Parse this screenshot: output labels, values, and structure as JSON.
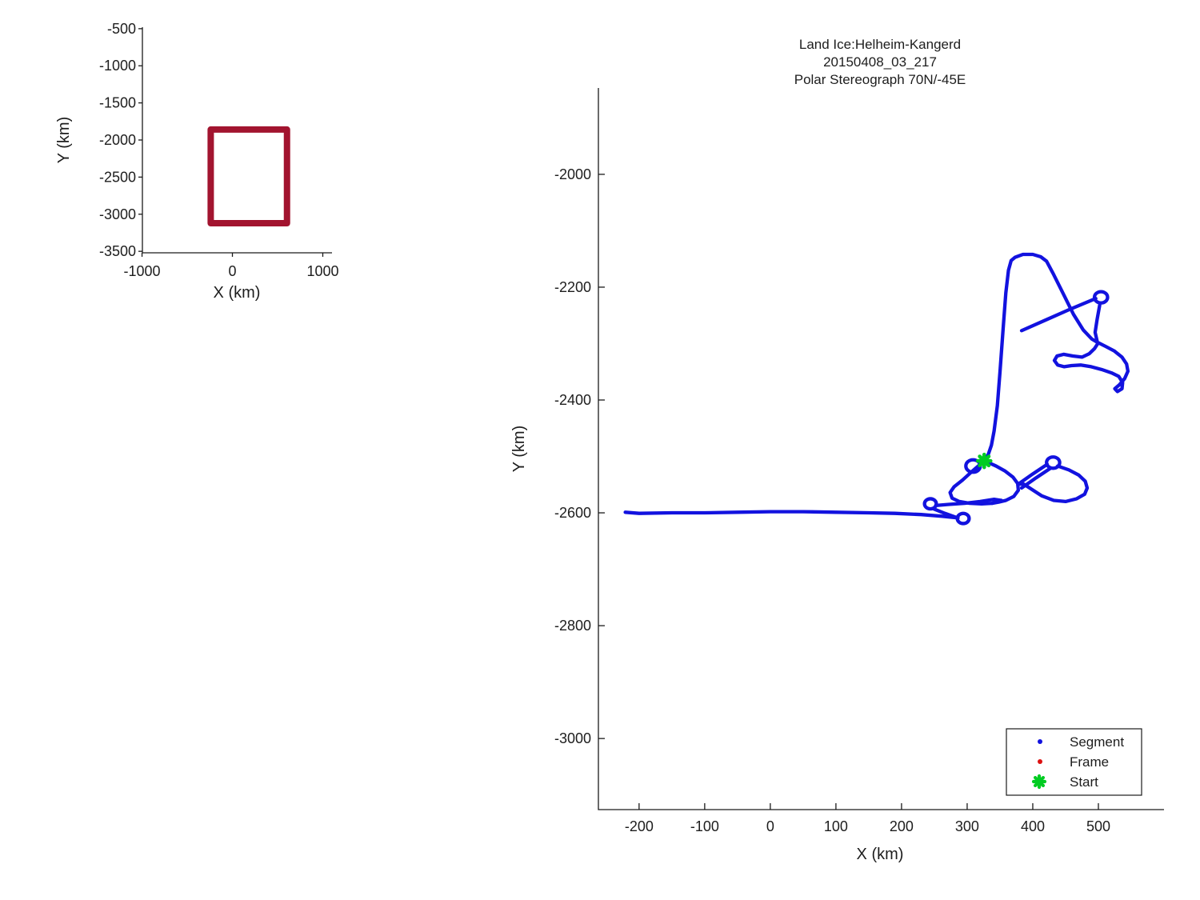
{
  "figure": {
    "background": "#ffffff",
    "axis_color": "#1a1a1a",
    "track_color": "#1212df",
    "frame_color": "#dd1111",
    "start_color": "#00cc22",
    "region_color": "#a2142f"
  },
  "chart_data": [
    {
      "id": "overview",
      "type": "line",
      "title": "",
      "xlabel": "X (km)",
      "ylabel": "Y (km)",
      "xlim": [
        -996,
        1102
      ],
      "ylim": [
        -3520,
        -480
      ],
      "xticks": [
        -1000,
        0,
        1000
      ],
      "yticks": [
        -500,
        -1000,
        -1500,
        -2000,
        -2500,
        -3000,
        -3500
      ],
      "grid": false,
      "box_region": {
        "x0": -240,
        "x1": 604,
        "y0": -3121,
        "y1": -1859,
        "color": "#a2142f",
        "meaning": "extent of detailed map"
      }
    },
    {
      "id": "main",
      "type": "line",
      "title": "Land Ice:Helheim-Kangerd",
      "subtitle": "20150408_03_217",
      "subtitle2": "Polar Stereograph 70N/-45E",
      "xlabel": "X (km)",
      "ylabel": "Y (km)",
      "xlim": [
        -262,
        600
      ],
      "ylim": [
        -3126,
        -1847
      ],
      "xticks": [
        -200,
        -100,
        0,
        100,
        200,
        300,
        400,
        500
      ],
      "yticks": [
        -2000,
        -2200,
        -2400,
        -2600,
        -2800,
        -3000
      ],
      "grid": false,
      "legend": [
        {
          "label": "Segment",
          "marker": "dot",
          "color": "#1212df"
        },
        {
          "label": "Frame",
          "marker": "dot",
          "color": "#dd1111"
        },
        {
          "label": "Start",
          "marker": "asterisk",
          "color": "#00cc22"
        }
      ],
      "legend_position": "lower right",
      "start": {
        "x": 326,
        "y": -2508
      },
      "tracks": [
        {
          "name": "west-leg",
          "points": [
            [
              -221,
              -2599
            ],
            [
              -200,
              -2601
            ],
            [
              -150,
              -2600
            ],
            [
              -100,
              -2600
            ],
            [
              -50,
              -2599
            ],
            [
              0,
              -2598
            ],
            [
              50,
              -2598
            ],
            [
              100,
              -2599
            ],
            [
              150,
              -2600
            ],
            [
              190,
              -2601
            ],
            [
              230,
              -2603
            ],
            [
              262,
              -2606
            ],
            [
              286,
              -2609
            ]
          ]
        },
        {
          "name": "hook-link-upper",
          "points": [
            [
              252,
              -2587
            ],
            [
              272,
              -2585
            ],
            [
              296,
              -2583
            ],
            [
              320,
              -2580
            ],
            [
              341,
              -2576
            ],
            [
              352,
              -2578
            ]
          ]
        },
        {
          "name": "hook-link-lower",
          "points": [
            [
              249,
              -2593
            ],
            [
              266,
              -2601
            ],
            [
              283,
              -2608
            ]
          ]
        },
        {
          "name": "left-lobe",
          "points": [
            [
              318,
              -2516
            ],
            [
              306,
              -2528
            ],
            [
              293,
              -2542
            ],
            [
              280,
              -2554
            ],
            [
              274,
              -2564
            ],
            [
              277,
              -2574
            ],
            [
              288,
              -2580
            ],
            [
              304,
              -2583
            ],
            [
              322,
              -2584
            ],
            [
              338,
              -2583
            ],
            [
              352,
              -2578
            ]
          ]
        },
        {
          "name": "center-lobe",
          "points": [
            [
              329,
              -2509
            ],
            [
              344,
              -2517
            ],
            [
              358,
              -2526
            ],
            [
              370,
              -2537
            ],
            [
              377,
              -2548
            ],
            [
              378,
              -2560
            ],
            [
              371,
              -2571
            ],
            [
              359,
              -2578
            ],
            [
              348,
              -2581
            ],
            [
              338,
              -2583
            ]
          ]
        },
        {
          "name": "ne-diagonal-1",
          "points": [
            [
              378,
              -2549
            ],
            [
              400,
              -2531
            ],
            [
              422,
              -2514
            ]
          ]
        },
        {
          "name": "ne-diagonal-2",
          "points": [
            [
              383,
              -2556
            ],
            [
              405,
              -2538
            ],
            [
              427,
              -2521
            ]
          ]
        },
        {
          "name": "right-lobe",
          "points": [
            [
              438,
              -2517
            ],
            [
              455,
              -2524
            ],
            [
              470,
              -2533
            ],
            [
              480,
              -2544
            ],
            [
              483,
              -2556
            ],
            [
              479,
              -2567
            ],
            [
              467,
              -2575
            ],
            [
              450,
              -2580
            ],
            [
              432,
              -2578
            ],
            [
              414,
              -2570
            ],
            [
              398,
              -2558
            ],
            [
              386,
              -2549
            ],
            [
              378,
              -2549
            ]
          ]
        },
        {
          "name": "north-leg",
          "points": [
            [
              326,
              -2508
            ],
            [
              332,
              -2497
            ],
            [
              337,
              -2480
            ],
            [
              341,
              -2455
            ],
            [
              346,
              -2410
            ],
            [
              350,
              -2350
            ],
            [
              355,
              -2270
            ],
            [
              359,
              -2210
            ],
            [
              363,
              -2170
            ],
            [
              367,
              -2153
            ],
            [
              373,
              -2147
            ],
            [
              385,
              -2142
            ],
            [
              400,
              -2142
            ],
            [
              412,
              -2146
            ],
            [
              421,
              -2154
            ],
            [
              432,
              -2178
            ],
            [
              447,
              -2213
            ],
            [
              462,
              -2248
            ],
            [
              477,
              -2276
            ],
            [
              490,
              -2292
            ],
            [
              499,
              -2298
            ]
          ]
        },
        {
          "name": "cross-diagonal",
          "points": [
            [
              383,
              -2277
            ],
            [
              420,
              -2258
            ],
            [
              455,
              -2240
            ],
            [
              496,
              -2220
            ]
          ]
        },
        {
          "name": "loop-descent",
          "points": [
            [
              502,
              -2232
            ],
            [
              498,
              -2258
            ],
            [
              495,
              -2280
            ],
            [
              498,
              -2295
            ]
          ]
        },
        {
          "name": "east-squiggle",
          "points": [
            [
              499,
              -2298
            ],
            [
              511,
              -2305
            ],
            [
              524,
              -2313
            ],
            [
              536,
              -2324
            ],
            [
              543,
              -2336
            ],
            [
              545,
              -2349
            ],
            [
              540,
              -2362
            ],
            [
              532,
              -2373
            ],
            [
              525,
              -2380
            ],
            [
              529,
              -2385
            ],
            [
              536,
              -2380
            ],
            [
              537,
              -2369
            ],
            [
              531,
              -2358
            ],
            [
              520,
              -2352
            ],
            [
              505,
              -2346
            ],
            [
              489,
              -2341
            ],
            [
              473,
              -2338
            ],
            [
              459,
              -2339
            ],
            [
              448,
              -2341
            ],
            [
              438,
              -2338
            ],
            [
              433,
              -2330
            ],
            [
              437,
              -2322
            ],
            [
              447,
              -2319
            ],
            [
              461,
              -2322
            ],
            [
              475,
              -2324
            ],
            [
              486,
              -2318
            ],
            [
              494,
              -2309
            ],
            [
              499,
              -2300
            ]
          ]
        }
      ],
      "turn_loops": [
        {
          "name": "west-hook-a",
          "cx": 244,
          "cy": -2584,
          "r": 9
        },
        {
          "name": "west-hook-b",
          "cx": 294,
          "cy": -2610,
          "r": 9
        },
        {
          "name": "start-loop",
          "cx": 309,
          "cy": -2517,
          "r": 11
        },
        {
          "name": "ne-cluster-loop",
          "cx": 431,
          "cy": -2511,
          "r": 10
        },
        {
          "name": "far-ne-loop",
          "cx": 504,
          "cy": -2218,
          "r": 10
        }
      ]
    }
  ]
}
